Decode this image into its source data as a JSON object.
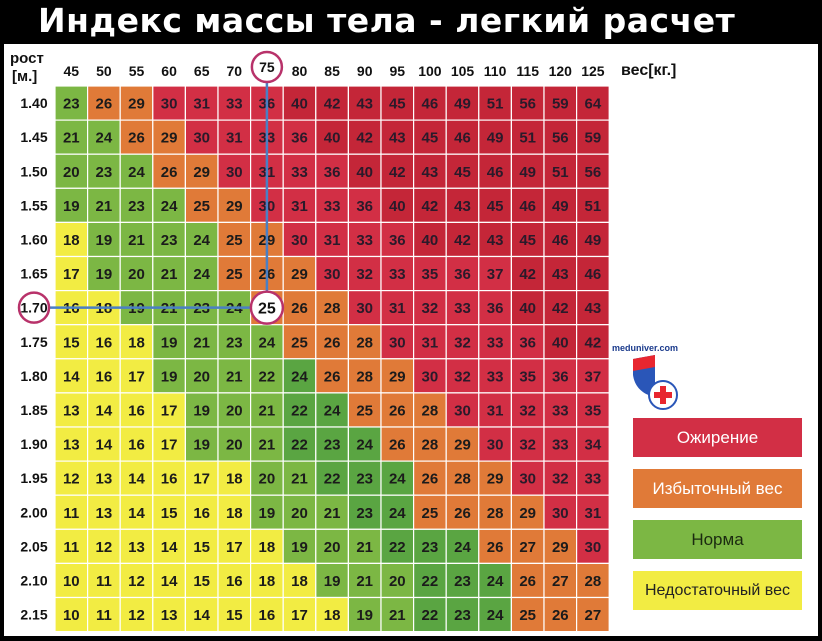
{
  "title": "Индекс массы тела - легкий расчет",
  "site": "meduniver.com",
  "chart_data": {
    "type": "heatmap",
    "row_header": "рост\n[м.]",
    "col_header": "вес[кг.]",
    "weights": [
      45,
      50,
      55,
      60,
      65,
      70,
      75,
      80,
      85,
      90,
      95,
      100,
      105,
      110,
      115,
      120,
      125
    ],
    "heights": [
      "1.40",
      "1.45",
      "1.50",
      "1.55",
      "1.60",
      "1.65",
      "1.70",
      "1.75",
      "1.80",
      "1.85",
      "1.90",
      "1.95",
      "2.00",
      "2.05",
      "2.10",
      "2.15"
    ],
    "values": [
      [
        23,
        26,
        29,
        30,
        31,
        33,
        36,
        40,
        42,
        43,
        45,
        46,
        49,
        51,
        56,
        59,
        64
      ],
      [
        21,
        24,
        26,
        29,
        30,
        31,
        33,
        36,
        40,
        42,
        43,
        45,
        46,
        49,
        51,
        56,
        59
      ],
      [
        20,
        23,
        24,
        26,
        29,
        30,
        31,
        33,
        36,
        40,
        42,
        43,
        45,
        46,
        49,
        51,
        56
      ],
      [
        19,
        21,
        23,
        24,
        25,
        29,
        30,
        31,
        33,
        36,
        40,
        42,
        43,
        45,
        46,
        49,
        51
      ],
      [
        18,
        19,
        21,
        23,
        24,
        25,
        29,
        30,
        31,
        33,
        36,
        40,
        42,
        43,
        45,
        46,
        49
      ],
      [
        17,
        19,
        20,
        21,
        24,
        25,
        26,
        29,
        30,
        32,
        33,
        35,
        36,
        37,
        42,
        43,
        46
      ],
      [
        16,
        18,
        19,
        21,
        23,
        24,
        25,
        26,
        28,
        30,
        31,
        32,
        33,
        36,
        40,
        42,
        43
      ],
      [
        15,
        16,
        18,
        19,
        21,
        23,
        24,
        25,
        26,
        28,
        30,
        31,
        32,
        33,
        36,
        40,
        42
      ],
      [
        14,
        16,
        17,
        19,
        20,
        21,
        22,
        24,
        26,
        28,
        29,
        30,
        32,
        33,
        35,
        36,
        37
      ],
      [
        13,
        14,
        16,
        17,
        19,
        20,
        21,
        22,
        24,
        25,
        26,
        28,
        30,
        31,
        32,
        33,
        35
      ],
      [
        13,
        14,
        16,
        17,
        19,
        20,
        21,
        22,
        23,
        24,
        26,
        28,
        29,
        30,
        32,
        33,
        34
      ],
      [
        12,
        13,
        14,
        16,
        17,
        18,
        20,
        21,
        22,
        23,
        24,
        26,
        28,
        29,
        30,
        32,
        33
      ],
      [
        11,
        13,
        14,
        15,
        16,
        18,
        19,
        20,
        21,
        23,
        24,
        25,
        26,
        28,
        29,
        30,
        31
      ],
      [
        11,
        12,
        13,
        14,
        15,
        17,
        18,
        19,
        20,
        21,
        22,
        23,
        24,
        26,
        27,
        29,
        30
      ],
      [
        10,
        11,
        12,
        14,
        15,
        16,
        18,
        18,
        19,
        21,
        20,
        22,
        23,
        24,
        26,
        27,
        28
      ],
      [
        10,
        11,
        12,
        13,
        14,
        15,
        16,
        17,
        18,
        19,
        21,
        22,
        23,
        24,
        25,
        26,
        27
      ]
    ],
    "highlight": {
      "weight": 75,
      "height": "1.70",
      "value": 25
    },
    "categories": [
      {
        "label": "Ожирение",
        "color": "#d22f45"
      },
      {
        "label": "Избыточный вес",
        "color": "#e07a38"
      },
      {
        "label": "Норма",
        "color": "#7cb744"
      },
      {
        "label": "Недостаточный вес",
        "color": "#f2ec43"
      }
    ],
    "colors": {
      "obese": "#d22f45",
      "over": "#e07a38",
      "normal": "#7cb744",
      "under": "#f2ec43",
      "obese_dark": "#c42638",
      "over_dark": "#d96330",
      "normal_dark": "#5aa542",
      "under_light": "#ecdc35"
    }
  }
}
